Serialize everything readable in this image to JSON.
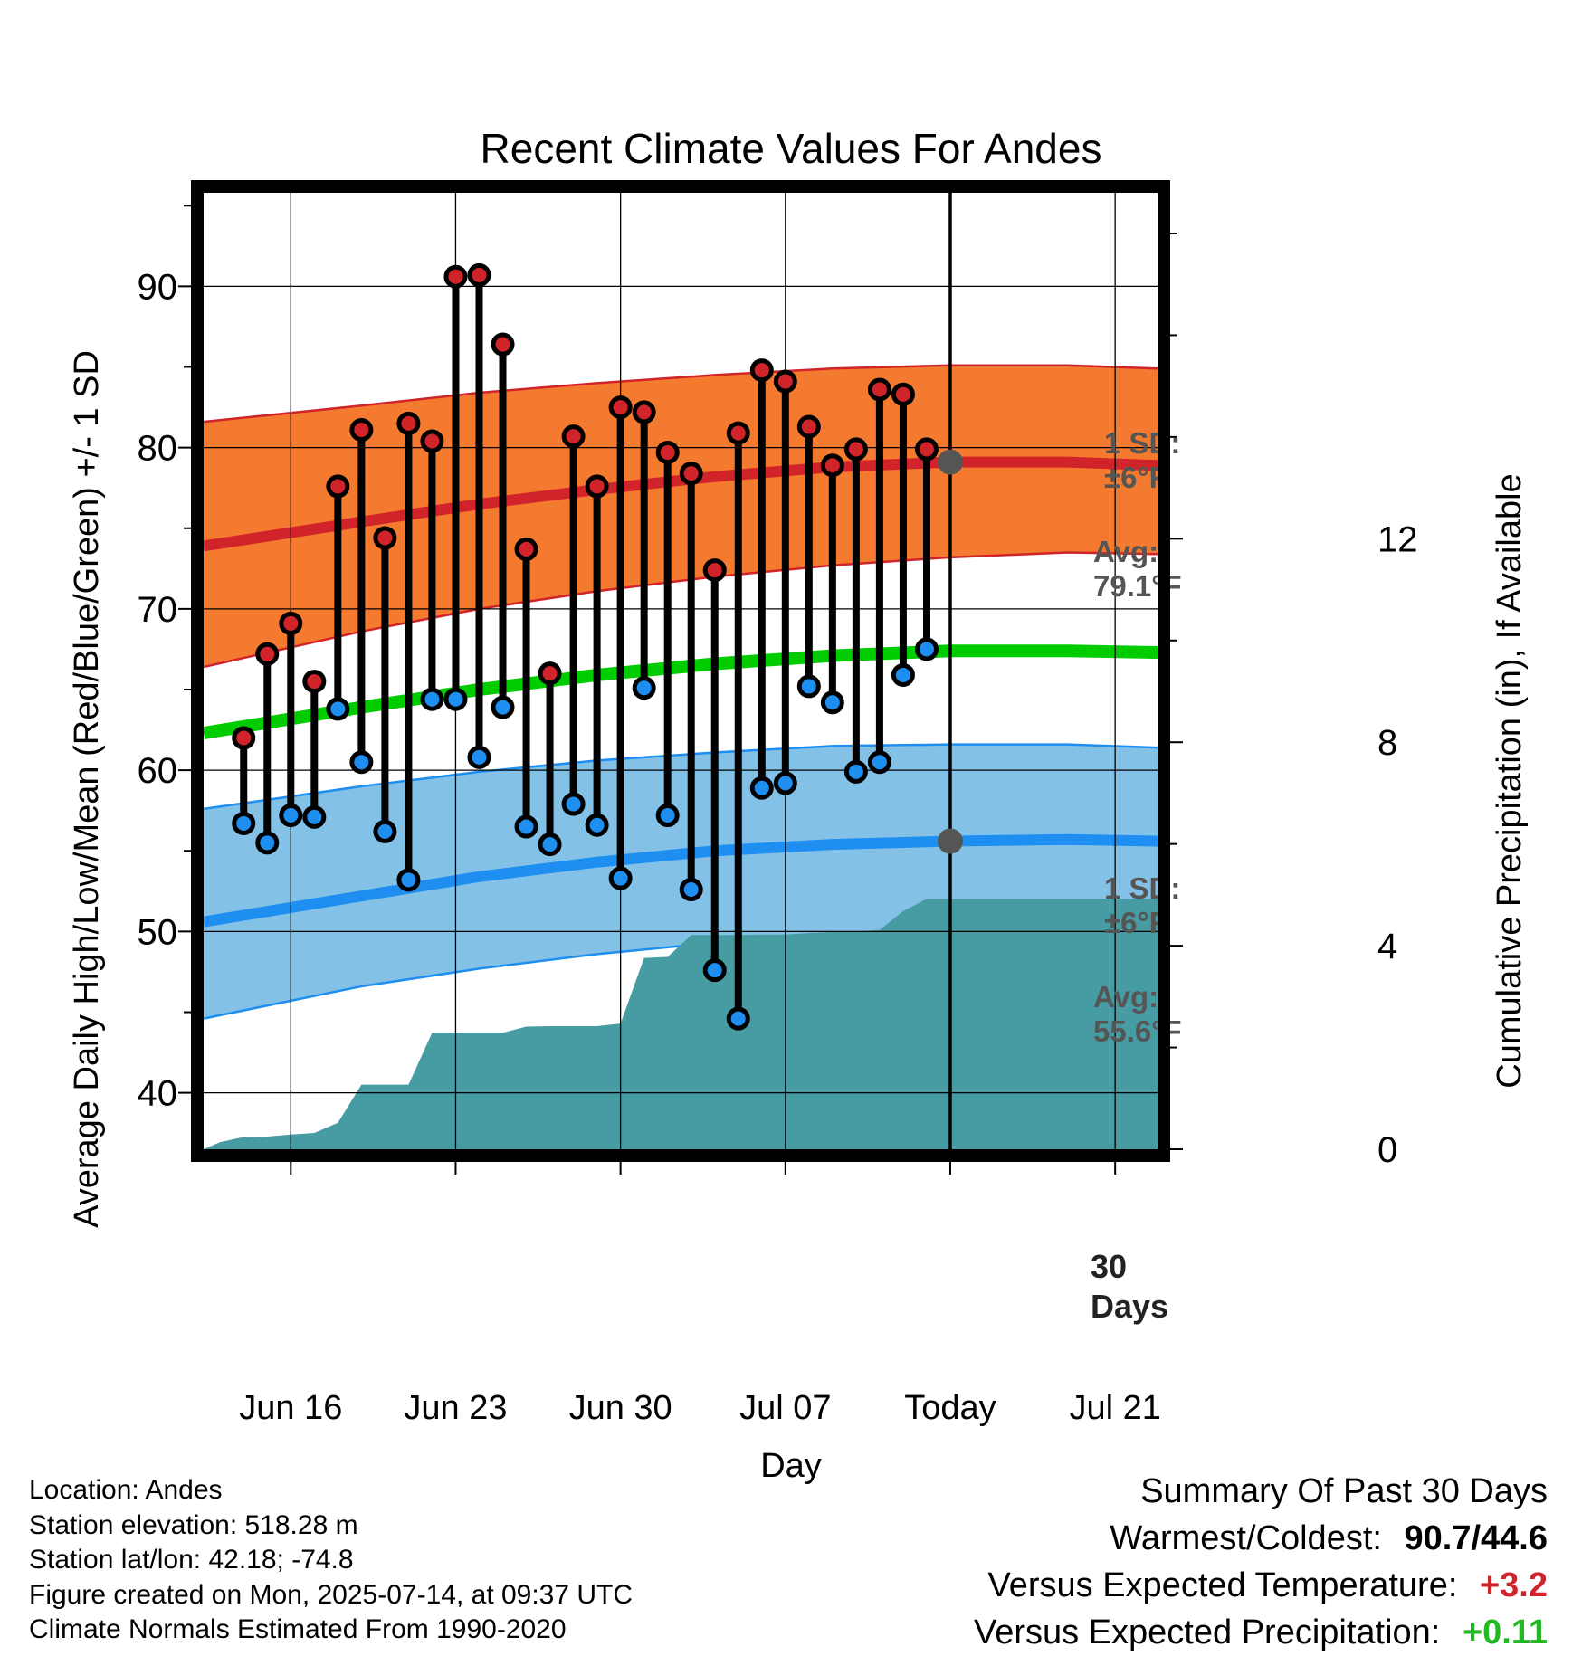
{
  "chart_data": {
    "type": "line",
    "title": "Recent Climate Values For Andes",
    "xlabel": "Day",
    "ylabel_left": "Average Daily High/Low/Mean (Red/Blue/Green) +/- 1 SD",
    "ylabel_right": "Cumulative Precipitation (in), If Available",
    "x_tick_labels": [
      "Jun 16",
      "Jun 23",
      "Jun 30",
      "Jul 07",
      "Today",
      "Jul 21"
    ],
    "x_tick_days": [
      2,
      9,
      16,
      23,
      30,
      37
    ],
    "xlim_days": [
      -1.7,
      38.8
    ],
    "ylim_left": [
      36.5,
      95.8
    ],
    "y_left_ticks": [
      40,
      50,
      60,
      70,
      80,
      90
    ],
    "ylim_right": [
      0,
      18.8
    ],
    "y_right_ticks": [
      0,
      4,
      8,
      12
    ],
    "day_zero": "Jun 14",
    "daily": {
      "high": [
        62.0,
        67.2,
        69.1,
        65.5,
        77.6,
        81.1,
        74.4,
        81.5,
        80.4,
        90.6,
        90.7,
        86.4,
        73.7,
        66.0,
        80.7,
        77.6,
        82.5,
        82.2,
        79.7,
        78.4,
        72.4,
        80.9,
        84.8,
        84.1,
        81.3,
        78.9,
        79.9,
        83.6,
        83.3,
        79.9
      ],
      "low": [
        56.7,
        55.5,
        57.2,
        57.1,
        63.8,
        60.5,
        56.2,
        53.2,
        64.4,
        64.4,
        60.8,
        63.9,
        56.5,
        55.4,
        57.9,
        56.6,
        53.3,
        65.1,
        57.2,
        52.6,
        47.6,
        44.6,
        58.9,
        59.2,
        65.2,
        64.2,
        59.9,
        60.5,
        65.9,
        67.5
      ]
    },
    "normals": {
      "days": [
        -1.7,
        5,
        10,
        15,
        20,
        25,
        30,
        35,
        38.8
      ],
      "high_avg": [
        73.9,
        75.4,
        76.5,
        77.4,
        78.2,
        78.8,
        79.1,
        79.1,
        78.9
      ],
      "low_avg": [
        50.6,
        52.2,
        53.4,
        54.3,
        55.0,
        55.4,
        55.6,
        55.7,
        55.6
      ],
      "mean_avg": [
        62.3,
        63.9,
        65.0,
        65.9,
        66.6,
        67.1,
        67.4,
        67.4,
        67.3
      ],
      "high_upper": [
        81.6,
        82.6,
        83.4,
        84.0,
        84.5,
        84.9,
        85.1,
        85.1,
        84.9
      ],
      "high_lower": [
        66.4,
        68.6,
        70.0,
        71.1,
        72.0,
        72.7,
        73.2,
        73.5,
        73.4
      ],
      "low_upper": [
        57.6,
        59.0,
        59.9,
        60.6,
        61.1,
        61.5,
        61.6,
        61.6,
        61.4
      ],
      "low_lower": [
        44.6,
        46.6,
        47.7,
        48.6,
        49.3,
        49.8,
        50.1,
        50.2,
        50.2
      ]
    },
    "precip": {
      "days": [
        -1.7,
        -1,
        0,
        1,
        2,
        3,
        4,
        5,
        6,
        7,
        8,
        9,
        10,
        11,
        12,
        13,
        14,
        15,
        16,
        17,
        18,
        19,
        20,
        21,
        22,
        23,
        24,
        25,
        26,
        27,
        28,
        29,
        30,
        38.8
      ],
      "cumulative": [
        0,
        0.14,
        0.24,
        0.25,
        0.29,
        0.32,
        0.52,
        1.27,
        1.27,
        1.27,
        2.29,
        2.29,
        2.29,
        2.29,
        2.41,
        2.42,
        2.42,
        2.42,
        2.47,
        3.76,
        3.78,
        4.21,
        4.21,
        4.21,
        4.22,
        4.22,
        4.25,
        4.27,
        4.28,
        4.31,
        4.68,
        4.92,
        4.92,
        4.92
      ]
    },
    "annotations": {
      "high_sd": "1 SD:\n±6°F",
      "high_avg": "Avg:\n79.1°F",
      "low_sd": "1 SD:\n±6°F",
      "low_avg": "Avg:\n55.6°F",
      "days_label": "30\nDays",
      "high_avg_value": 79.1,
      "low_avg_value": 55.6
    },
    "colors": {
      "high_band": "#f47a2f",
      "high_line": "#d1242a",
      "low_band": "#84c1e6",
      "low_line": "#1e8ef0",
      "mean_line": "#00cc00",
      "precip": "#479ca3",
      "high_marker": "#d1242a",
      "low_marker": "#1e8ef0",
      "annotation": "#555555"
    }
  },
  "info": {
    "location": "Location: Andes",
    "elevation": "Station elevation: 518.28 m",
    "latlon": "Station lat/lon: 42.18; -74.8",
    "created": "Figure created on Mon, 2025-07-14, at 09:37 UTC",
    "normals": "Climate Normals Estimated From 1990-2020"
  },
  "summary": {
    "heading": "Summary Of Past 30 Days",
    "warm_cold_label": "Warmest/Coldest:",
    "warm_cold_value": "90.7/44.6",
    "temp_label": "Versus Expected Temperature:",
    "temp_value": "+3.2",
    "temp_color": "#d1242a",
    "precip_label": "Versus Expected Precipitation:",
    "precip_value": "+0.11",
    "precip_color": "#22b822"
  }
}
